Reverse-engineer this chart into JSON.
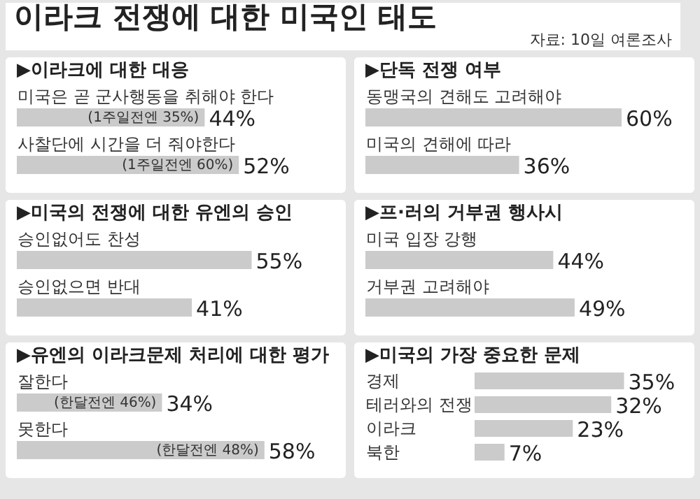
{
  "chart_data": [
    {
      "type": "other",
      "title": "이라크 전쟁에 대한 미국인 태도",
      "annotations": [
        "자료: 10일 여론조사"
      ]
    },
    {
      "type": "bar",
      "orientation": "horizontal",
      "title": "▶이라크에 대한 대응",
      "categories": [
        "미국은 곧 군사행동을 취해야 한다",
        "사찰단에 시간을 더 줘야한다"
      ],
      "values": [
        44,
        52
      ],
      "value_labels": [
        "44%",
        "52%"
      ],
      "color": "#cbcbcb",
      "annotations": [
        {
          "text": "(1주일전엔 35%)",
          "x": 44,
          "y": "미국은 곧 군사행동을 취해야 한다"
        },
        {
          "text": "(1주일전엔 60%)",
          "x": 52,
          "y": "사찰단에 시간을 더 줘야한다"
        }
      ]
    },
    {
      "type": "bar",
      "orientation": "horizontal",
      "title": "▶단독 전쟁 여부",
      "categories": [
        "동맹국의 견해도 고려해야",
        "미국의 견해에 따라"
      ],
      "values": [
        60,
        36
      ],
      "value_labels": [
        "60%",
        "36%"
      ],
      "color": "#cbcbcb"
    },
    {
      "type": "bar",
      "orientation": "horizontal",
      "title": "▶미국의 전쟁에 대한 유엔의 승인",
      "categories": [
        "승인없어도 찬성",
        "승인없으면 반대"
      ],
      "values": [
        55,
        41
      ],
      "value_labels": [
        "55%",
        "41%"
      ],
      "color": "#cbcbcb"
    },
    {
      "type": "bar",
      "orientation": "horizontal",
      "title": "▶프·러의 거부권 행사시",
      "categories": [
        "미국 입장 강행",
        "거부권 고려해야"
      ],
      "values": [
        44,
        49
      ],
      "value_labels": [
        "44%",
        "49%"
      ],
      "color": "#cbcbcb"
    },
    {
      "type": "bar",
      "orientation": "horizontal",
      "title": "▶유엔의 이라크문제 처리에 대한 평가",
      "categories": [
        "잘한다",
        "못한다"
      ],
      "values": [
        34,
        58
      ],
      "value_labels": [
        "34%",
        "58%"
      ],
      "color": "#cbcbcb",
      "annotations": [
        {
          "text": "(한달전엔 46%)",
          "x": 34,
          "y": "잘한다"
        },
        {
          "text": "(한달전엔 48%)",
          "x": 58,
          "y": "못한다"
        }
      ]
    },
    {
      "type": "bar",
      "orientation": "horizontal",
      "title": "▶미국의 가장 중요한 문제",
      "categories": [
        "경제",
        "테러와의 전쟁",
        "이라크",
        "북한"
      ],
      "values": [
        35,
        32,
        23,
        7
      ],
      "value_labels": [
        "35%",
        "32%",
        "23%",
        "7%"
      ],
      "color": "#cbcbcb"
    }
  ]
}
